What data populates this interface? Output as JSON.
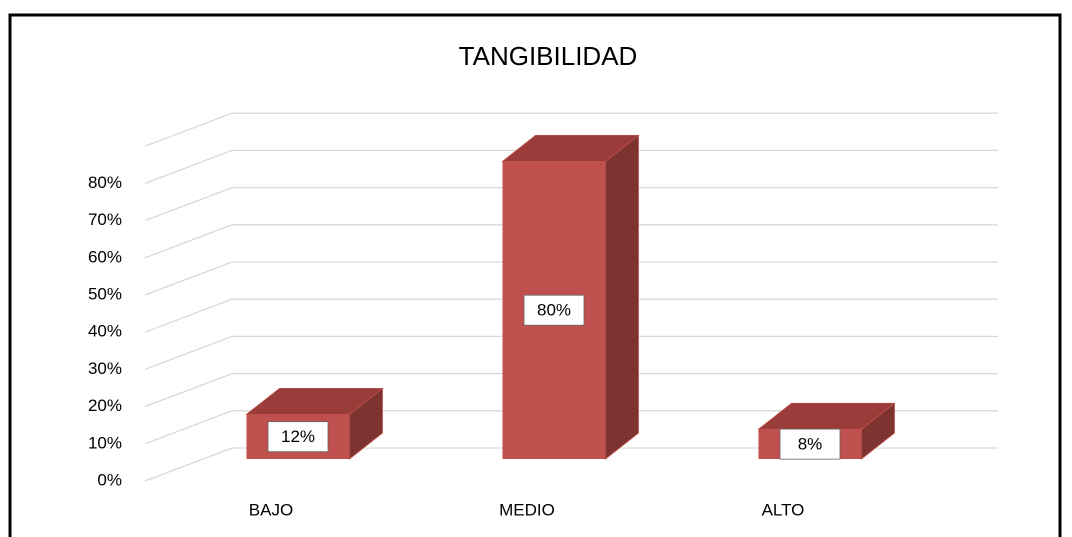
{
  "chart_data": {
    "type": "bar3d",
    "title": "TANGIBILIDAD",
    "categories": [
      "BAJO",
      "MEDIO",
      "ALTO"
    ],
    "values": [
      12,
      80,
      8
    ],
    "value_labels": [
      "12%",
      "80%",
      "8%"
    ],
    "color": "#c0504d",
    "ylim": [
      0,
      90
    ],
    "yticks": [
      {
        "value": 0,
        "label": "0%"
      },
      {
        "value": 10,
        "label": "10%"
      },
      {
        "value": 20,
        "label": "20%"
      },
      {
        "value": 30,
        "label": "30%"
      },
      {
        "value": 40,
        "label": "40%"
      },
      {
        "value": 50,
        "label": "50%"
      },
      {
        "value": 60,
        "label": "60%"
      },
      {
        "value": 70,
        "label": "70%"
      },
      {
        "value": 80,
        "label": "80%"
      }
    ],
    "grid": true
  }
}
